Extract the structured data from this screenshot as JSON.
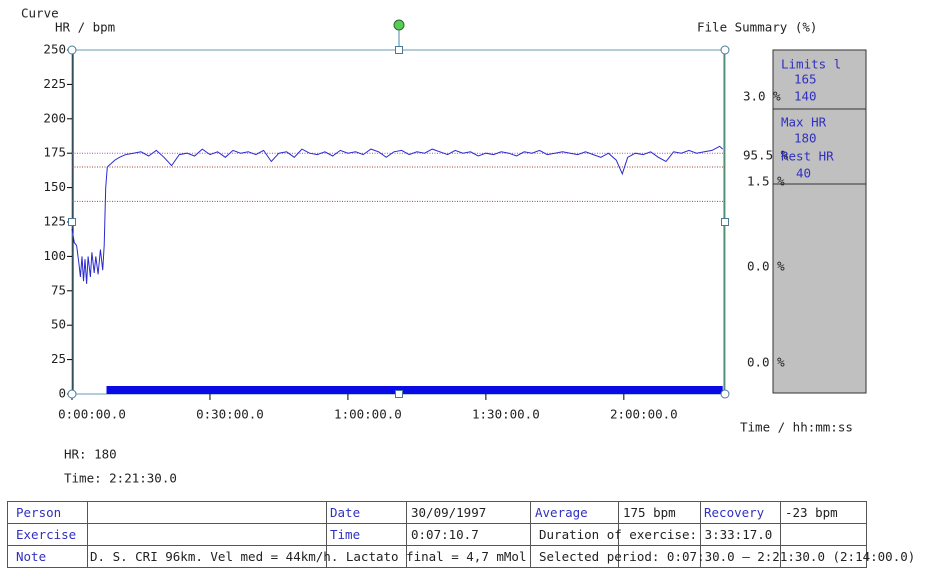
{
  "chart_data": {
    "type": "line",
    "title": "Curve",
    "y_label": "HR / bpm",
    "x_label": "Time / hh:mm:ss",
    "xlim": [
      0,
      8520
    ],
    "ylim": [
      0,
      250
    ],
    "yticks": [
      0,
      25,
      50,
      75,
      100,
      125,
      150,
      175,
      200,
      225,
      250
    ],
    "xticks": [
      {
        "value": 0,
        "label": "0:00:00.0"
      },
      {
        "value": 1800,
        "label": "0:30:00.0"
      },
      {
        "value": 3600,
        "label": "1:00:00.0"
      },
      {
        "value": 5400,
        "label": "1:30:00.0"
      },
      {
        "value": 7200,
        "label": "2:00:00.0"
      }
    ],
    "reference_lines": [
      {
        "value": 175,
        "color": "#c040c0"
      },
      {
        "value": 165,
        "color": "#a04040"
      },
      {
        "value": 140,
        "color": "#a04040"
      }
    ],
    "selection": {
      "start": 450,
      "end": 8490,
      "color": "#0a0ae6"
    },
    "series": [
      {
        "name": "HR",
        "color": "#2a2ad0",
        "x": [
          0,
          30,
          60,
          90,
          110,
          130,
          150,
          170,
          190,
          210,
          240,
          260,
          290,
          310,
          340,
          370,
          400,
          420,
          440,
          460,
          500,
          560,
          620,
          700,
          800,
          900,
          1000,
          1100,
          1200,
          1300,
          1400,
          1500,
          1600,
          1700,
          1800,
          1900,
          2000,
          2100,
          2200,
          2300,
          2400,
          2500,
          2600,
          2700,
          2800,
          2900,
          3000,
          3100,
          3200,
          3300,
          3400,
          3500,
          3600,
          3700,
          3800,
          3900,
          4000,
          4100,
          4200,
          4300,
          4400,
          4500,
          4600,
          4700,
          4800,
          4900,
          5000,
          5100,
          5200,
          5300,
          5400,
          5500,
          5600,
          5700,
          5800,
          5900,
          6000,
          6100,
          6200,
          6300,
          6400,
          6500,
          6600,
          6700,
          6800,
          6900,
          7000,
          7100,
          7180,
          7250,
          7350,
          7450,
          7550,
          7650,
          7750,
          7850,
          7950,
          8050,
          8150,
          8250,
          8350,
          8450,
          8490
        ],
        "values": [
          120,
          110,
          108,
          95,
          85,
          100,
          82,
          98,
          80,
          100,
          85,
          103,
          88,
          100,
          87,
          105,
          90,
          108,
          150,
          165,
          167,
          170,
          172,
          174,
          175,
          176,
          173,
          177,
          172,
          166,
          174,
          175,
          173,
          178,
          174,
          176,
          172,
          177,
          175,
          176,
          174,
          177,
          169,
          175,
          176,
          172,
          178,
          175,
          174,
          176,
          173,
          177,
          175,
          176,
          174,
          178,
          176,
          172,
          176,
          177,
          174,
          176,
          175,
          178,
          176,
          174,
          177,
          175,
          176,
          173,
          175,
          174,
          176,
          175,
          173,
          176,
          175,
          177,
          174,
          175,
          176,
          175,
          174,
          176,
          174,
          172,
          175,
          170,
          160,
          172,
          175,
          174,
          176,
          172,
          169,
          176,
          175,
          177,
          175,
          176,
          177,
          180,
          178
        ]
      }
    ]
  },
  "summary": {
    "title": "File Summary (%)",
    "percents": [
      "3.0 %",
      "95.5 %",
      "1.5 %",
      "0.0 %",
      "0.0 %"
    ],
    "box": [
      "Limits l",
      "165",
      "140",
      "Max HR",
      "180",
      "Rest HR",
      "40"
    ]
  },
  "cursor": {
    "hr": "HR: 180",
    "time": "Time: 2:21:30.0"
  },
  "table": {
    "rows": [
      [
        "Person",
        "Date",
        "30/09/1997",
        "Average",
        "175 bpm",
        "Recovery",
        "-23 bpm"
      ],
      [
        "Exercise",
        "Time",
        "0:07:10.7",
        "Duration of exercise: 3:33:17.0"
      ],
      [
        "Note",
        "D. S. CRI 96km. Vel med = 44km/h. Lactato final = 4,7 mMol",
        "Selected period: 0:07:30.0 – 2:21:30.0 (2:14:00.0)"
      ]
    ]
  }
}
